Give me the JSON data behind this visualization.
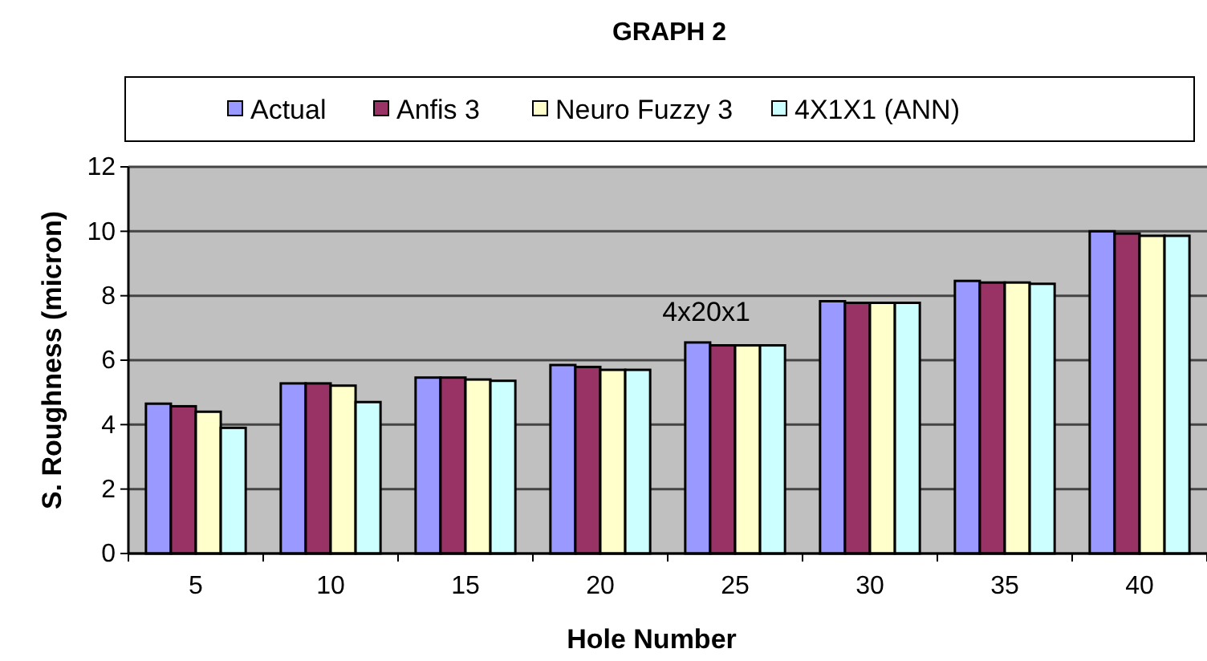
{
  "chart_data": {
    "type": "bar",
    "title": "GRAPH 2",
    "xlabel": "Hole Number",
    "ylabel": "S. Roughness (micron)",
    "categories": [
      "5",
      "10",
      "15",
      "20",
      "25",
      "30",
      "35",
      "40"
    ],
    "series": [
      {
        "name": "Actual",
        "color": "#9999ff",
        "values": [
          4.65,
          5.28,
          5.46,
          5.85,
          6.55,
          7.83,
          8.46,
          10.0
        ]
      },
      {
        "name": "Anfis 3",
        "color": "#993366",
        "values": [
          4.57,
          5.28,
          5.46,
          5.79,
          6.46,
          7.78,
          8.41,
          9.93
        ]
      },
      {
        "name": "Neuro Fuzzy 3",
        "color": "#ffffcc",
        "values": [
          4.4,
          5.21,
          5.4,
          5.7,
          6.46,
          7.78,
          8.41,
          9.86
        ]
      },
      {
        "name": "4X1X1 (ANN)",
        "color": "#ccffff",
        "values": [
          3.9,
          4.7,
          5.36,
          5.7,
          6.46,
          7.78,
          8.37,
          9.86
        ]
      }
    ],
    "ylim": [
      0,
      12
    ],
    "yticks": [
      0,
      2,
      4,
      6,
      8,
      10,
      12
    ],
    "grid": "y",
    "legend": "top",
    "annotations": [
      "4x20x1"
    ]
  }
}
